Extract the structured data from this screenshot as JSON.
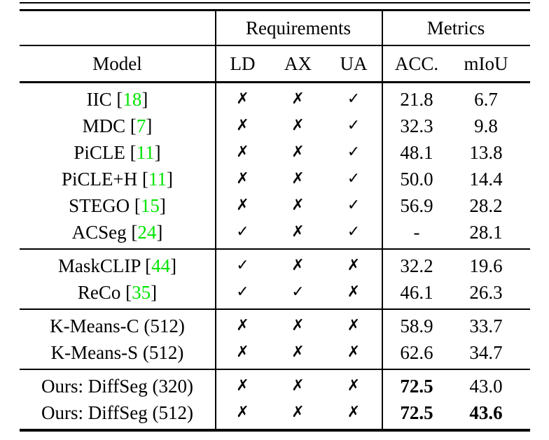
{
  "colors": {
    "citation_green": "#00e400",
    "text": "#000000",
    "background": "#ffffff"
  },
  "header": {
    "requirements_label": "Requirements",
    "metrics_label": "Metrics",
    "columns": {
      "model": "Model",
      "ld": "LD",
      "ax": "AX",
      "ua": "UA",
      "acc": "ACC.",
      "miou": "mIoU"
    }
  },
  "groups": [
    {
      "rows": [
        {
          "model_pre": "IIC [",
          "cite": "18",
          "model_post": "]",
          "ld": "✗",
          "ax": "✗",
          "ua": "✓",
          "acc": "21.8",
          "miou": "6.7"
        },
        {
          "model_pre": "MDC [",
          "cite": "7",
          "model_post": "]",
          "ld": "✗",
          "ax": "✗",
          "ua": "✓",
          "acc": "32.3",
          "miou": "9.8"
        },
        {
          "model_pre": "PiCLE [",
          "cite": "11",
          "model_post": "]",
          "ld": "✗",
          "ax": "✗",
          "ua": "✓",
          "acc": "48.1",
          "miou": "13.8"
        },
        {
          "model_pre": "PiCLE+H [",
          "cite": "11",
          "model_post": "]",
          "ld": "✗",
          "ax": "✗",
          "ua": "✓",
          "acc": "50.0",
          "miou": "14.4"
        },
        {
          "model_pre": "STEGO [",
          "cite": "15",
          "model_post": "]",
          "ld": "✗",
          "ax": "✗",
          "ua": "✓",
          "acc": "56.9",
          "miou": "28.2"
        },
        {
          "model_pre": "ACSeg [",
          "cite": "24",
          "model_post": "]",
          "ld": "✓",
          "ax": "✗",
          "ua": "✓",
          "acc": "-",
          "miou": "28.1"
        }
      ]
    },
    {
      "rows": [
        {
          "model_pre": "MaskCLIP [",
          "cite": "44",
          "model_post": "]",
          "ld": "✓",
          "ax": "✗",
          "ua": "✗",
          "acc": "32.2",
          "miou": "19.6"
        },
        {
          "model_pre": "ReCo [",
          "cite": "35",
          "model_post": "]",
          "ld": "✓",
          "ax": "✓",
          "ua": "✗",
          "acc": "46.1",
          "miou": "26.3"
        }
      ]
    },
    {
      "rows": [
        {
          "model_pre": "K-Means-C (512)",
          "cite": "",
          "model_post": "",
          "ld": "✗",
          "ax": "✗",
          "ua": "✗",
          "acc": "58.9",
          "miou": "33.7"
        },
        {
          "model_pre": "K-Means-S (512)",
          "cite": "",
          "model_post": "",
          "ld": "✗",
          "ax": "✗",
          "ua": "✗",
          "acc": "62.6",
          "miou": "34.7"
        }
      ]
    },
    {
      "rows": [
        {
          "model_pre": "Ours: DiffSeg (320)",
          "cite": "",
          "model_post": "",
          "ld": "✗",
          "ax": "✗",
          "ua": "✗",
          "acc": "72.5",
          "miou": "43.0"
        },
        {
          "model_pre": "Ours: DiffSeg (512)",
          "cite": "",
          "model_post": "",
          "ld": "✗",
          "ax": "✗",
          "ua": "✗",
          "acc": "72.5",
          "miou": "43.6"
        }
      ]
    }
  ]
}
